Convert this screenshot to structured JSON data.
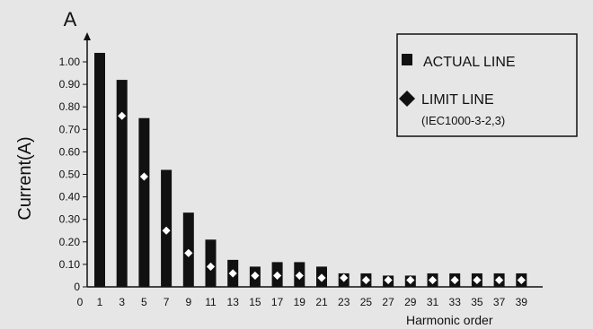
{
  "chart_data": {
    "type": "bar",
    "ylabel": "Current(A)",
    "yunit": "A",
    "xlabel": "Harmonic order",
    "x_origin_label": "0",
    "ylim": [
      0,
      1.1
    ],
    "yticks": [
      "0",
      "0.10",
      "0.20",
      "0.30",
      "0.40",
      "0.50",
      "0.60",
      "0.70",
      "0.80",
      "0.90",
      "1.00"
    ],
    "categories": [
      "1",
      "3",
      "5",
      "7",
      "9",
      "11",
      "13",
      "15",
      "17",
      "19",
      "21",
      "23",
      "25",
      "27",
      "29",
      "31",
      "33",
      "35",
      "37",
      "39"
    ],
    "series": [
      {
        "name": "ACTUAL LINE",
        "kind": "bar",
        "color": "#111111",
        "values": [
          1.04,
          0.92,
          0.75,
          0.52,
          0.33,
          0.21,
          0.12,
          0.09,
          0.11,
          0.11,
          0.09,
          0.06,
          0.06,
          0.05,
          0.05,
          0.06,
          0.06,
          0.06,
          0.06,
          0.06
        ]
      },
      {
        "name": "LIMIT LINE",
        "subtitle": "(IEC1000-3-2,3)",
        "kind": "marker",
        "marker": "diamond",
        "color": "#ffffff",
        "values": [
          null,
          0.76,
          0.49,
          0.25,
          0.15,
          0.09,
          0.06,
          0.05,
          0.05,
          0.05,
          0.04,
          0.04,
          0.03,
          0.03,
          0.03,
          0.03,
          0.03,
          0.03,
          0.03,
          0.03
        ]
      }
    ],
    "legend": {
      "position": "top-right"
    },
    "grid": false
  },
  "colors": {
    "background": "#e6e6e6",
    "ink": "#111111"
  }
}
